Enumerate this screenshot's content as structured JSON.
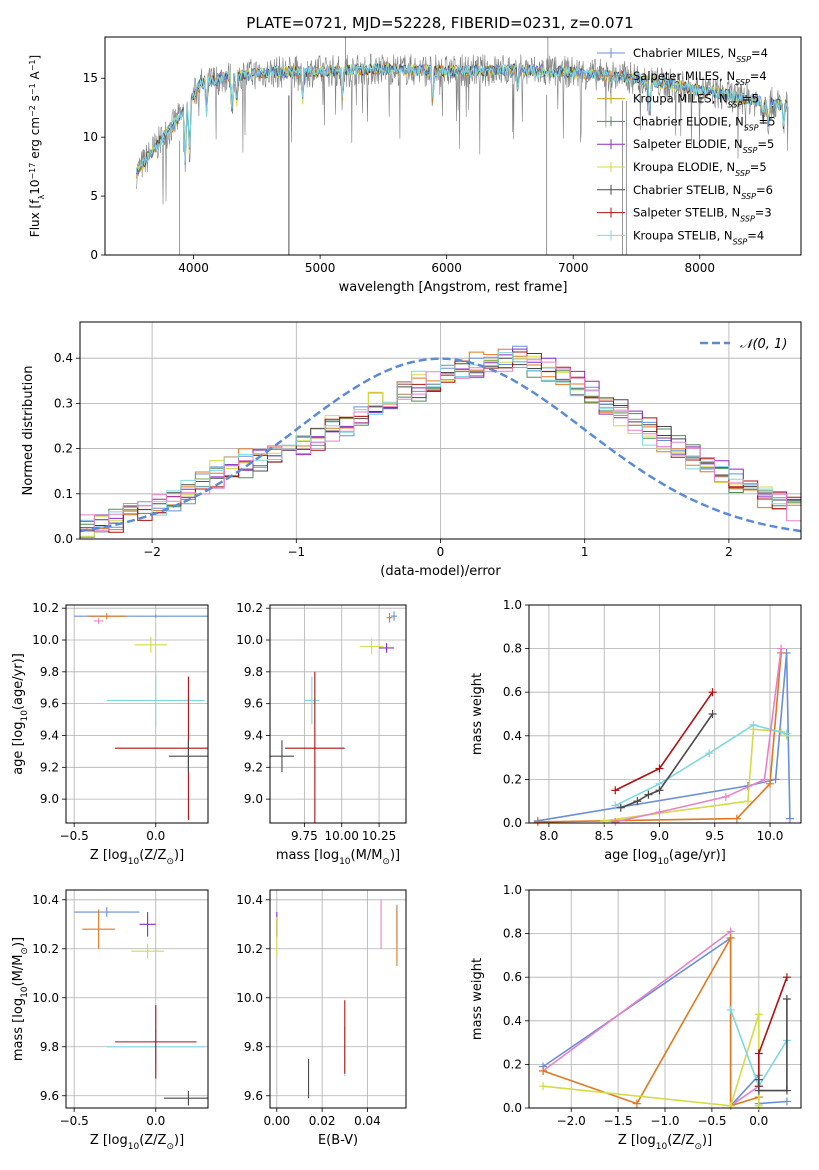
{
  "figure_title": "PLATE=0721, MJD=52228, FIBERID=0231, z=0.071",
  "legend_entries": [
    {
      "label": "Chabrier MILES, N",
      "sub": "SSP",
      "suffix": "=4",
      "color": "#6a8fd8"
    },
    {
      "label": "Salpeter MILES, N",
      "sub": "SSP",
      "suffix": "=4",
      "color": "#e07820"
    },
    {
      "label": "Kroupa MILES, N",
      "sub": "SSP",
      "suffix": "=5",
      "color": "#c9a21e"
    },
    {
      "label": "Chabrier ELODIE, N",
      "sub": "SSP",
      "suffix": "=5",
      "color": "#4d8f5a"
    },
    {
      "label": "Salpeter ELODIE, N",
      "sub": "SSP",
      "suffix": "=5",
      "color": "#8a2cc0"
    },
    {
      "label": "Kroupa ELODIE, N",
      "sub": "SSP",
      "suffix": "=5",
      "color": "#d3dc46"
    },
    {
      "label": "Chabrier STELIB, N",
      "sub": "SSP",
      "suffix": "=6",
      "color": "#4a4a4a"
    },
    {
      "label": "Salpeter STELIB, N",
      "sub": "SSP",
      "suffix": "=3",
      "color": "#b01010"
    },
    {
      "label": "Kroupa STELIB, N",
      "sub": "SSP",
      "suffix": "=4",
      "color": "#7fd8e0"
    }
  ],
  "extra_colors": {
    "pink": "#e882c8",
    "spectrum_gray": "#808080"
  },
  "chart_data": [
    {
      "id": "spectrum",
      "type": "line",
      "xlabel": "wavelength [Angstrom, rest frame]",
      "ylabel_parts": [
        "Flux [f",
        "λ",
        "10",
        "−17",
        " erg cm",
        "−2",
        " s",
        "−1",
        " A",
        "−1",
        "]"
      ],
      "xlim": [
        3300,
        8800
      ],
      "ylim": [
        0,
        18.5
      ],
      "xticks": [
        4000,
        5000,
        6000,
        7000,
        8000
      ],
      "yticks": [
        0,
        5,
        10,
        15
      ],
      "grid": false,
      "legend_position": "right",
      "x_range": [
        3550,
        8700
      ],
      "shape_points": [
        [
          3550,
          7.0
        ],
        [
          3650,
          8.5
        ],
        [
          3800,
          10.5
        ],
        [
          3950,
          12.5
        ],
        [
          4050,
          14.5
        ],
        [
          4300,
          15.2
        ],
        [
          4600,
          15.5
        ],
        [
          5000,
          15.6
        ],
        [
          5500,
          15.8
        ],
        [
          6000,
          15.6
        ],
        [
          6500,
          15.7
        ],
        [
          7000,
          15.5
        ],
        [
          7500,
          15.0
        ],
        [
          8000,
          14.0
        ],
        [
          8500,
          13.0
        ],
        [
          8700,
          12.6
        ]
      ],
      "absorption_lines": [
        [
          3934,
          4.5
        ],
        [
          3968,
          4.5
        ],
        [
          4102,
          2.5
        ],
        [
          4304,
          3.0
        ],
        [
          4340,
          2.5
        ],
        [
          4861,
          2.5
        ],
        [
          5175,
          2.5
        ],
        [
          5890,
          3.0
        ],
        [
          6563,
          2.0
        ],
        [
          7605,
          3.0
        ],
        [
          8500,
          1.5
        ],
        [
          8542,
          1.5
        ],
        [
          8662,
          1.5
        ]
      ],
      "deep_spikes": [
        [
          4755,
          0
        ],
        [
          7420,
          0
        ]
      ],
      "upward_spikes": [
        [
          5200,
          0
        ],
        [
          6800,
          0
        ]
      ],
      "dips_to_zero": [
        [
          3890,
          0
        ],
        [
          4750,
          0
        ],
        [
          6790,
          0
        ],
        [
          7390,
          0
        ]
      ]
    },
    {
      "id": "residual_hist",
      "type": "bar",
      "xlabel": "(data-model)/error",
      "ylabel": "Normed distribution",
      "xlim": [
        -2.5,
        2.5
      ],
      "ylim": [
        0,
        0.48
      ],
      "xticks": [
        -2,
        -1,
        0,
        1,
        2
      ],
      "yticks": [
        0.0,
        0.1,
        0.2,
        0.3,
        0.4
      ],
      "grid": true,
      "legend_position": "top-right",
      "gaussian_label": "𝒩(0, 1)",
      "gaussian_color": "#5b8bd6",
      "bin_edges_start": -2.6,
      "bin_width": 0.1,
      "series_values": [
        [
          0.02,
          0.025,
          0.03,
          0.04,
          0.055,
          0.06,
          0.07,
          0.085,
          0.1,
          0.12,
          0.14,
          0.16,
          0.17,
          0.18,
          0.19,
          0.2,
          0.21,
          0.22,
          0.24,
          0.25,
          0.27,
          0.29,
          0.3,
          0.33,
          0.34,
          0.35,
          0.36,
          0.37,
          0.38,
          0.39,
          0.4,
          0.42,
          0.39,
          0.38,
          0.36,
          0.35,
          0.33,
          0.3,
          0.28,
          0.26,
          0.25,
          0.22,
          0.2,
          0.19,
          0.17,
          0.15,
          0.14,
          0.12,
          0.1,
          0.09,
          0.07,
          0.06
        ],
        [
          0.025,
          0.03,
          0.035,
          0.045,
          0.05,
          0.065,
          0.075,
          0.09,
          0.11,
          0.13,
          0.15,
          0.16,
          0.18,
          0.19,
          0.2,
          0.21,
          0.22,
          0.23,
          0.25,
          0.26,
          0.28,
          0.3,
          0.31,
          0.34,
          0.35,
          0.36,
          0.37,
          0.38,
          0.39,
          0.4,
          0.41,
          0.4,
          0.38,
          0.37,
          0.35,
          0.33,
          0.31,
          0.29,
          0.27,
          0.25,
          0.23,
          0.21,
          0.19,
          0.18,
          0.16,
          0.14,
          0.12,
          0.11,
          0.09,
          0.08,
          0.06,
          0.05
        ],
        [
          0.02,
          0.03,
          0.035,
          0.05,
          0.055,
          0.07,
          0.08,
          0.09,
          0.105,
          0.12,
          0.135,
          0.15,
          0.16,
          0.175,
          0.185,
          0.2,
          0.21,
          0.225,
          0.24,
          0.255,
          0.27,
          0.285,
          0.3,
          0.315,
          0.33,
          0.345,
          0.36,
          0.37,
          0.38,
          0.39,
          0.395,
          0.39,
          0.38,
          0.37,
          0.355,
          0.34,
          0.32,
          0.3,
          0.285,
          0.265,
          0.245,
          0.225,
          0.205,
          0.185,
          0.165,
          0.145,
          0.125,
          0.11,
          0.095,
          0.08,
          0.065,
          0.05
        ]
      ]
    },
    {
      "id": "age_vs_Z",
      "type": "scatter",
      "xlabel_parts": [
        "Z [log",
        "10",
        "(Z/Z",
        "⊙",
        ")]"
      ],
      "ylabel_parts": [
        "age  [log",
        "10",
        "(age/yr)]"
      ],
      "xlim": [
        -0.55,
        0.32
      ],
      "ylim": [
        8.85,
        10.22
      ],
      "xticks": [
        -0.5,
        0.0
      ],
      "yticks": [
        9.0,
        9.2,
        9.4,
        9.6,
        9.8,
        10.0,
        10.2
      ],
      "grid": true,
      "points": [
        {
          "x": 0.0,
          "y": 10.15,
          "xerr": 0.5,
          "yerr": 0.01,
          "series": 0
        },
        {
          "x": -0.3,
          "y": 10.15,
          "xerr": 0.12,
          "yerr": 0.02,
          "series": 1
        },
        {
          "x": -0.03,
          "y": 9.97,
          "xerr": 0.1,
          "yerr": 0.05,
          "series": 5
        },
        {
          "x": 0.0,
          "y": 9.62,
          "xerr": 0.3,
          "yerr": 0.16,
          "series": 8
        },
        {
          "x": 0.2,
          "y": 9.32,
          "xerr": 0.45,
          "yerr": 0.45,
          "series": 7
        },
        {
          "x": 0.2,
          "y": 9.27,
          "xerr": 0.12,
          "yerr": 0.1,
          "series": 6
        },
        {
          "x": -0.35,
          "y": 10.12,
          "xerr": 0.03,
          "yerr": 0.02,
          "series": 9
        }
      ]
    },
    {
      "id": "age_vs_mass",
      "type": "scatter",
      "xlabel_parts": [
        "mass [log",
        "10",
        "(M/M",
        "⊙",
        ")]"
      ],
      "ylabel_parts": [],
      "xlim": [
        9.52,
        10.43
      ],
      "ylim": [
        8.85,
        10.22
      ],
      "xticks": [
        9.75,
        10.0,
        10.25
      ],
      "yticks": [
        9.0,
        9.2,
        9.4,
        9.6,
        9.8,
        10.0,
        10.2
      ],
      "grid": true,
      "points": [
        {
          "x": 10.35,
          "y": 10.15,
          "xerr": 0.02,
          "yerr": 0.03,
          "series": 0
        },
        {
          "x": 10.32,
          "y": 10.14,
          "xerr": 0.02,
          "yerr": 0.03,
          "series": 1
        },
        {
          "x": 10.2,
          "y": 9.96,
          "xerr": 0.08,
          "yerr": 0.05,
          "series": 5
        },
        {
          "x": 10.3,
          "y": 9.95,
          "xerr": 0.05,
          "yerr": 0.03,
          "series": 4
        },
        {
          "x": 9.8,
          "y": 9.62,
          "xerr": 0.05,
          "yerr": 0.15,
          "series": 8
        },
        {
          "x": 9.82,
          "y": 9.32,
          "xerr": 0.2,
          "yerr": 0.48,
          "series": 7
        },
        {
          "x": 9.6,
          "y": 9.27,
          "xerr": 0.08,
          "yerr": 0.1,
          "series": 6
        }
      ]
    },
    {
      "id": "mass_weight_vs_age",
      "type": "line",
      "xlabel_parts": [
        "age  [log",
        "10",
        "(age/yr)]"
      ],
      "ylabel": "mass weight",
      "xlim": [
        7.82,
        10.28
      ],
      "ylim": [
        0,
        1.0
      ],
      "xticks": [
        8.0,
        8.5,
        9.0,
        9.5,
        10.0
      ],
      "yticks": [
        0.0,
        0.2,
        0.4,
        0.6,
        0.8,
        1.0
      ],
      "grid": true,
      "series": [
        {
          "color_index": 0,
          "x": [
            7.9,
            9.8,
            10.05,
            10.15,
            10.18
          ],
          "y": [
            0.01,
            0.17,
            0.2,
            0.78,
            0.02
          ]
        },
        {
          "color_index": 1,
          "x": [
            7.9,
            9.7,
            10.0,
            10.1
          ],
          "y": [
            0.005,
            0.02,
            0.18,
            0.78
          ]
        },
        {
          "color_index": 5,
          "x": [
            8.5,
            9.8,
            9.85,
            10.1,
            10.15
          ],
          "y": [
            0.01,
            0.1,
            0.43,
            0.42,
            0.4
          ]
        },
        {
          "color_index": 8,
          "x": [
            8.6,
            9.0,
            9.45,
            9.85,
            10.15
          ],
          "y": [
            0.08,
            0.18,
            0.32,
            0.45,
            0.41
          ]
        },
        {
          "color_index": 7,
          "x": [
            8.6,
            9.0,
            9.48
          ],
          "y": [
            0.15,
            0.25,
            0.6
          ]
        },
        {
          "color_index": 6,
          "x": [
            8.65,
            8.8,
            8.9,
            9.0,
            9.48
          ],
          "y": [
            0.07,
            0.1,
            0.13,
            0.15,
            0.5
          ]
        },
        {
          "color_index": 9,
          "x": [
            8.6,
            9.0,
            9.6,
            9.95,
            10.1
          ],
          "y": [
            0.005,
            0.05,
            0.12,
            0.2,
            0.8
          ]
        }
      ]
    },
    {
      "id": "mass_vs_Z",
      "type": "scatter",
      "xlabel_parts": [
        "Z [log",
        "10",
        "(Z/Z",
        "⊙",
        ")]"
      ],
      "ylabel_parts": [
        "mass [log",
        "10",
        "(M/M",
        "⊙",
        ")]"
      ],
      "xlim": [
        -0.55,
        0.32
      ],
      "ylim": [
        9.55,
        10.44
      ],
      "xticks": [
        -0.5,
        0.0
      ],
      "yticks": [
        9.6,
        9.8,
        10.0,
        10.2,
        10.4
      ],
      "grid": true,
      "points": [
        {
          "x": -0.3,
          "y": 10.35,
          "xerr": 0.2,
          "yerr": 0.02,
          "series": 0
        },
        {
          "x": -0.35,
          "y": 10.28,
          "xerr": 0.1,
          "yerr": 0.08,
          "series": 1
        },
        {
          "x": -0.05,
          "y": 10.19,
          "xerr": 0.1,
          "yerr": 0.03,
          "series": 5
        },
        {
          "x": 0.0,
          "y": 9.8,
          "xerr": 0.3,
          "yerr": 0.07,
          "series": 8
        },
        {
          "x": 0.0,
          "y": 9.82,
          "xerr": 0.25,
          "yerr": 0.15,
          "series": 7
        },
        {
          "x": 0.2,
          "y": 9.59,
          "xerr": 0.15,
          "yerr": 0.03,
          "series": 6
        },
        {
          "x": -0.05,
          "y": 10.3,
          "xerr": 0.05,
          "yerr": 0.05,
          "series": 4
        }
      ]
    },
    {
      "id": "mass_vs_ebv",
      "type": "scatter",
      "xlabel": "E(B-V)",
      "xlim": [
        -0.003,
        0.057
      ],
      "ylim": [
        9.55,
        10.44
      ],
      "xticks": [
        0.0,
        0.02,
        0.04
      ],
      "yticks": [
        9.6,
        9.8,
        10.0,
        10.2,
        10.4
      ],
      "grid": true,
      "points": [
        {
          "x": 0.0,
          "y": 10.3,
          "xerr": 0,
          "yerr": 0.05,
          "series": 4
        },
        {
          "x": 0.0,
          "y": 10.25,
          "xerr": 0,
          "yerr": 0.08,
          "series": 5
        },
        {
          "x": 0.046,
          "y": 10.3,
          "xerr": 0,
          "yerr": 0.1,
          "series": 9
        },
        {
          "x": 0.053,
          "y": 10.3,
          "xerr": 0,
          "yerr": 0.08,
          "series": 0
        },
        {
          "x": 0.053,
          "y": 10.25,
          "xerr": 0,
          "yerr": 0.12,
          "series": 1
        },
        {
          "x": 0.03,
          "y": 9.78,
          "xerr": 0,
          "yerr": 0.1,
          "series": 8
        },
        {
          "x": 0.03,
          "y": 9.84,
          "xerr": 0,
          "yerr": 0.15,
          "series": 7
        },
        {
          "x": 0.014,
          "y": 9.67,
          "xerr": 0,
          "yerr": 0.08,
          "series": 6
        }
      ]
    },
    {
      "id": "mass_weight_vs_Z",
      "type": "line",
      "xlabel_parts": [
        "Z [log",
        "10",
        "(Z/Z",
        "⊙",
        ")]"
      ],
      "ylabel": "mass weight",
      "xlim": [
        -2.45,
        0.45
      ],
      "ylim": [
        0,
        1.0
      ],
      "xticks": [
        -2.0,
        -1.5,
        -1.0,
        -0.5,
        0.0
      ],
      "yticks": [
        0.0,
        0.2,
        0.4,
        0.6,
        0.8,
        1.0
      ],
      "grid": true,
      "series": [
        {
          "color_index": 0,
          "x": [
            -2.3,
            -0.3,
            -0.3,
            0.0,
            0.0,
            0.3
          ],
          "y": [
            0.19,
            0.78,
            0.01,
            0.15,
            0.02,
            0.03
          ]
        },
        {
          "color_index": 9,
          "x": [
            -2.3,
            -0.3,
            -0.3,
            0.0
          ],
          "y": [
            0.17,
            0.81,
            0.01,
            0.1
          ]
        },
        {
          "color_index": 1,
          "x": [
            -2.3,
            -1.3,
            -0.3,
            -0.3,
            0.0
          ],
          "y": [
            0.17,
            0.02,
            0.78,
            0.01,
            0.05
          ]
        },
        {
          "color_index": 5,
          "x": [
            -2.3,
            -0.3,
            0.0,
            0.0
          ],
          "y": [
            0.1,
            0.01,
            0.43,
            0.01
          ]
        },
        {
          "color_index": 8,
          "x": [
            -0.3,
            0.0,
            0.3
          ],
          "y": [
            0.45,
            0.1,
            0.31
          ]
        },
        {
          "color_index": 7,
          "x": [
            0.0,
            0.0,
            0.3
          ],
          "y": [
            0.1,
            0.25,
            0.6
          ]
        },
        {
          "color_index": 6,
          "x": [
            0.0,
            0.0,
            0.3,
            0.3
          ],
          "y": [
            0.13,
            0.08,
            0.08,
            0.5
          ]
        }
      ]
    }
  ]
}
